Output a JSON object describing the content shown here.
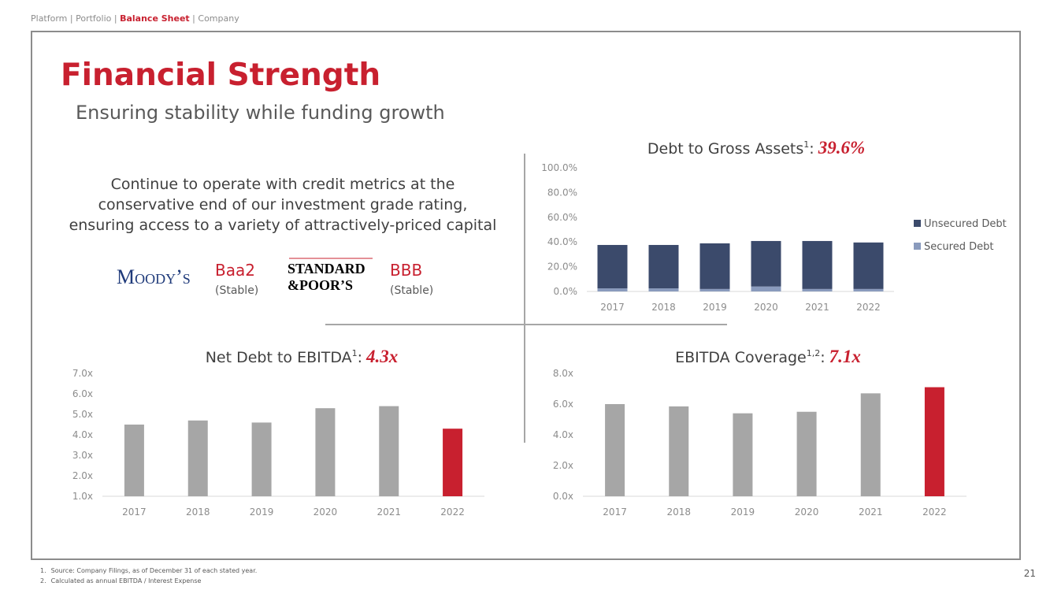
{
  "nav": {
    "items": [
      "Platform",
      "Portfolio",
      "Balance Sheet",
      "Company"
    ],
    "separator": "|",
    "active": 2
  },
  "header": {
    "title": "Financial Strength",
    "subtitle": "Ensuring stability while funding growth"
  },
  "body": {
    "lines": [
      "Continue to operate with credit metrics at the",
      "conservative end of our investment grade rating,",
      "ensuring access to a variety of attractively-priced capital"
    ]
  },
  "ratings": [
    {
      "agency_lines": [
        "Moody’s"
      ],
      "rating": "Baa2",
      "outlook": "(Stable)"
    },
    {
      "agency_lines": [
        "STANDARD",
        "&POOR’S"
      ],
      "rating": "BBB",
      "outlook": "(Stable)"
    }
  ],
  "chart_data": [
    {
      "type": "stacked_bar",
      "title": "Debt to Gross Assets",
      "title_note": "1",
      "separator": ":",
      "highlight": "39.6%",
      "categories": [
        "2017",
        "2018",
        "2019",
        "2020",
        "2021",
        "2022"
      ],
      "series": [
        {
          "name": "Unsecured Debt",
          "color": "#3b4a6b",
          "values": [
            35.1,
            35.1,
            36.9,
            36.8,
            38.8,
            37.6
          ]
        },
        {
          "name": "Secured Debt",
          "color": "#8a9bbd",
          "values": [
            2.5,
            2.5,
            2.0,
            4.0,
            2.0,
            2.0
          ]
        }
      ],
      "ylim": [
        0,
        100
      ],
      "yticks": [
        {
          "value": 0,
          "label": "0.0%"
        },
        {
          "value": 20,
          "label": "20.0%"
        },
        {
          "value": 40,
          "label": "40.0%"
        },
        {
          "value": 60,
          "label": "60.0%"
        },
        {
          "value": 80,
          "label": "80.0%"
        },
        {
          "value": 100,
          "label": "100.0%"
        }
      ],
      "grid": false,
      "legend": "right"
    },
    {
      "type": "bar",
      "title": "Net Debt to EBITDA",
      "title_note": "1",
      "separator": ":",
      "highlight": "4.3x",
      "categories": [
        "2017",
        "2018",
        "2019",
        "2020",
        "2021",
        "2022"
      ],
      "values": [
        4.5,
        4.7,
        4.6,
        5.3,
        5.4,
        4.3
      ],
      "colors": [
        "#a6a6a6",
        "#a6a6a6",
        "#a6a6a6",
        "#a6a6a6",
        "#a6a6a6",
        "#c8202f"
      ],
      "ylim": [
        1,
        7
      ],
      "yticks": [
        {
          "value": 1,
          "label": "1.0x"
        },
        {
          "value": 2,
          "label": "2.0x"
        },
        {
          "value": 3,
          "label": "3.0x"
        },
        {
          "value": 4,
          "label": "4.0x"
        },
        {
          "value": 5,
          "label": "5.0x"
        },
        {
          "value": 6,
          "label": "6.0x"
        },
        {
          "value": 7,
          "label": "7.0x"
        }
      ],
      "grid": false
    },
    {
      "type": "bar",
      "title": "EBITDA Coverage",
      "title_note": "1,2",
      "separator": ":",
      "highlight": "7.1x",
      "categories": [
        "2017",
        "2018",
        "2019",
        "2020",
        "2021",
        "2022"
      ],
      "values": [
        6.0,
        5.85,
        5.4,
        5.5,
        6.7,
        7.1
      ],
      "colors": [
        "#a6a6a6",
        "#a6a6a6",
        "#a6a6a6",
        "#a6a6a6",
        "#a6a6a6",
        "#c8202f"
      ],
      "ylim": [
        0,
        8
      ],
      "yticks": [
        {
          "value": 0,
          "label": "0.0x"
        },
        {
          "value": 2,
          "label": "2.0x"
        },
        {
          "value": 4,
          "label": "4.0x"
        },
        {
          "value": 6,
          "label": "6.0x"
        },
        {
          "value": 8,
          "label": "8.0x"
        }
      ],
      "grid": false
    }
  ],
  "footnotes": [
    {
      "marker": "1.",
      "text": "Source: Company Filings, as of December 31 of each stated year."
    },
    {
      "marker": "2.",
      "text": "Calculated as annual EBITDA / Interest Expense"
    }
  ],
  "page_number": "21"
}
